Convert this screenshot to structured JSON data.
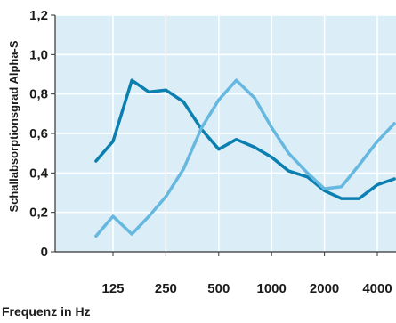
{
  "chart_data": {
    "type": "line",
    "ylabel": "Schallabsorptionsgrad Alpha-S",
    "xlabel": "Frequenz in Hz",
    "ylim": [
      0,
      1.2
    ],
    "yticks": [
      0,
      0.2,
      0.4,
      0.6,
      0.8,
      1.0,
      1.2
    ],
    "ytick_labels": [
      "0",
      "0,2",
      "0,4",
      "0,6",
      "0,8",
      "1,0",
      "1,2"
    ],
    "xscale": "log",
    "xticks": [
      125,
      250,
      500,
      1000,
      2000,
      4000
    ],
    "xtick_labels": [
      "125",
      "250",
      "500",
      "1000",
      "2000",
      "4000"
    ],
    "grid": true,
    "x": [
      100,
      125,
      160,
      200,
      250,
      315,
      400,
      500,
      630,
      800,
      1000,
      1250,
      1600,
      2000,
      2500,
      3150,
      4000,
      5000
    ],
    "series": [
      {
        "color": "#0a7fb0",
        "values": [
          0.46,
          0.56,
          0.87,
          0.81,
          0.82,
          0.76,
          0.62,
          0.52,
          0.57,
          0.53,
          0.48,
          0.41,
          0.38,
          0.31,
          0.27,
          0.27,
          0.34,
          0.37
        ]
      },
      {
        "color": "#66b8df",
        "values": [
          0.08,
          0.18,
          0.09,
          0.18,
          0.28,
          0.42,
          0.63,
          0.77,
          0.87,
          0.78,
          0.63,
          0.5,
          0.4,
          0.32,
          0.33,
          0.44,
          0.56,
          0.65
        ]
      }
    ]
  }
}
